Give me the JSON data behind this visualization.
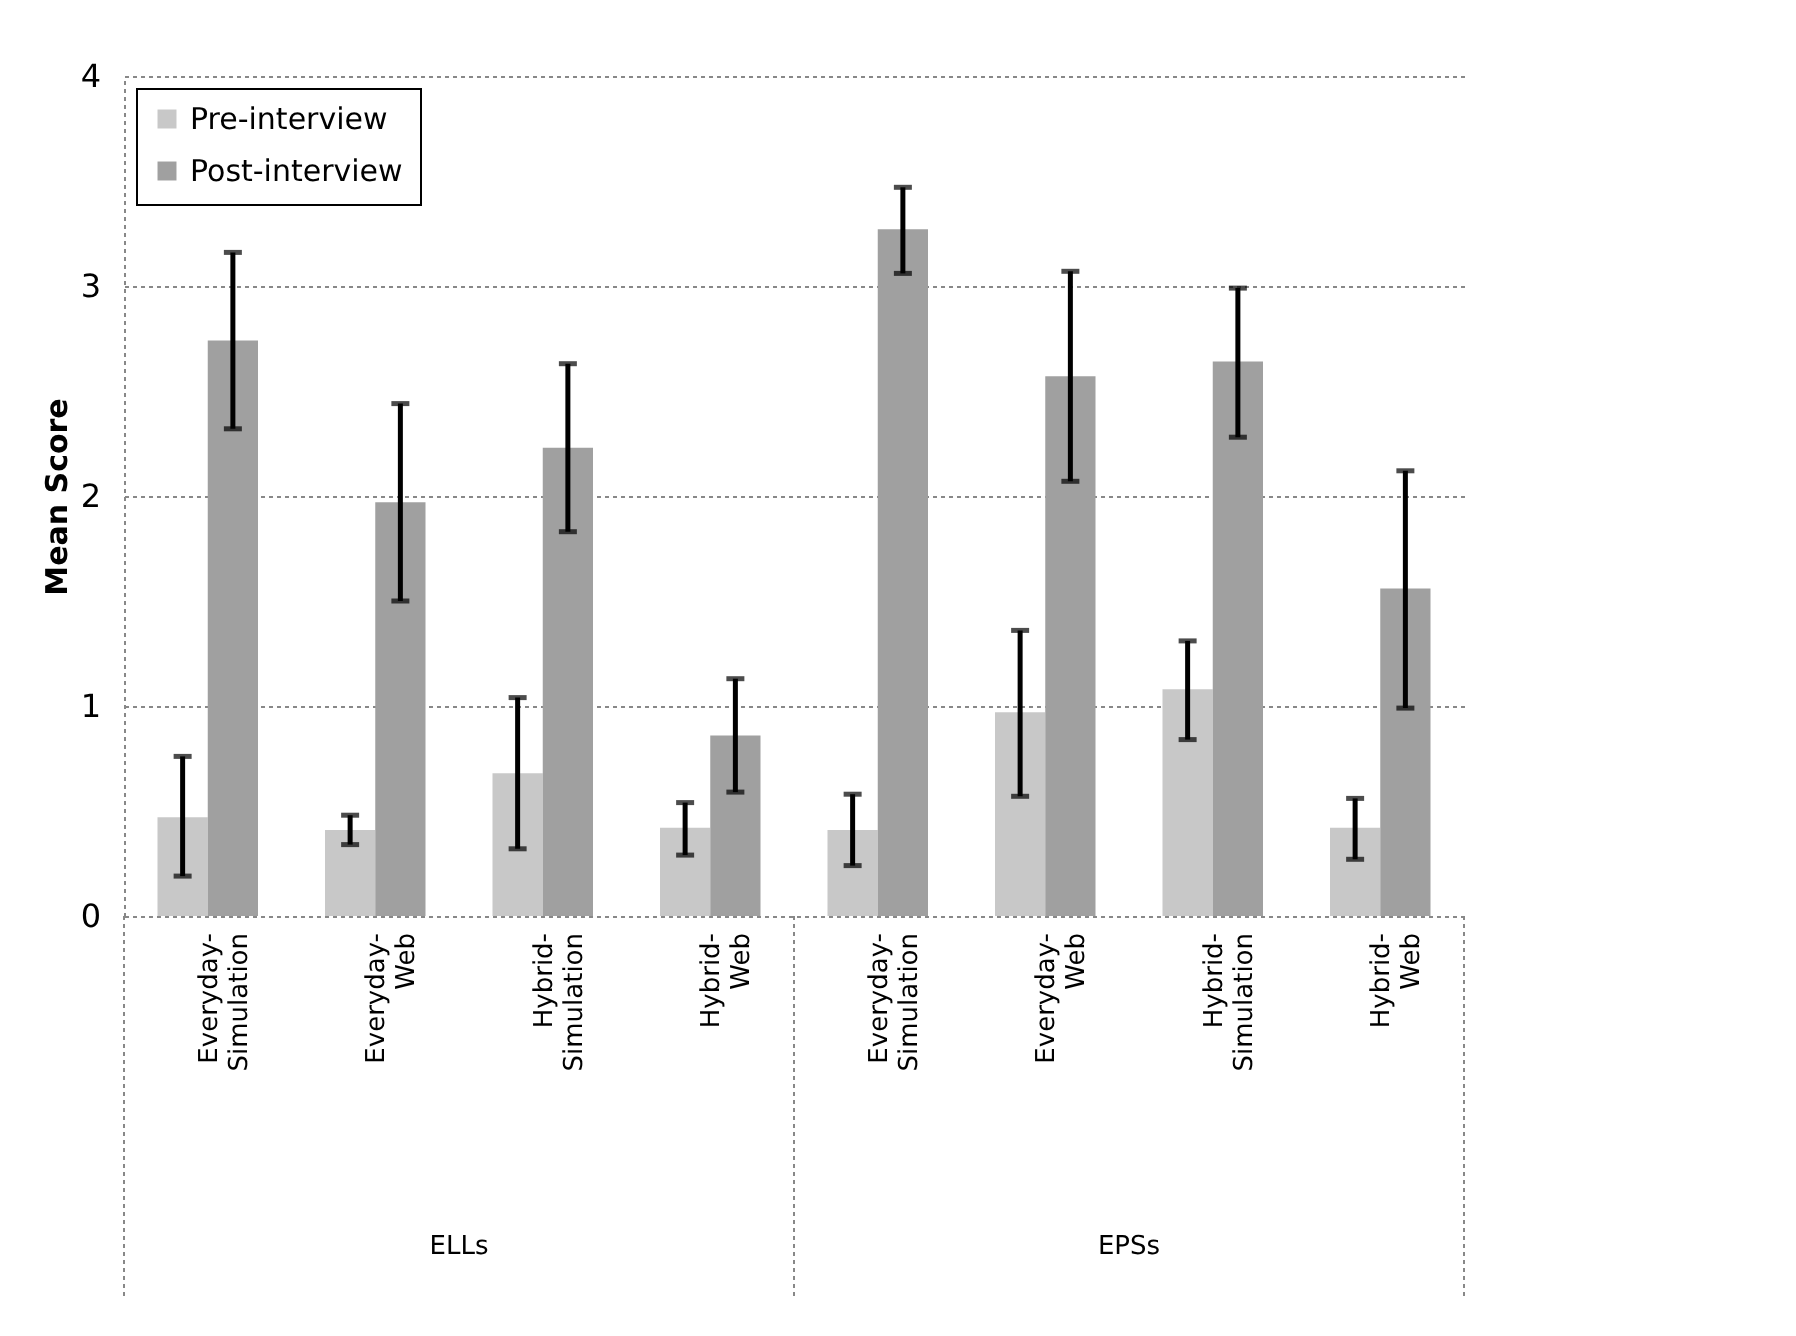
{
  "chart_data": {
    "type": "bar",
    "ylabel": "Mean Score",
    "categories": [
      "Everyday-Simulation",
      "Everyday-Web",
      "Hybrid-Simulation",
      "Hybrid-Web",
      "Everyday-Simulation",
      "Everyday-Web",
      "Hybrid-Simulation",
      "Hybrid-Web"
    ],
    "annotations": [
      "ELLs",
      "EPSs"
    ],
    "series": [
      {
        "name": "Pre-interview",
        "color": "#c8c8c8",
        "values": [
          0.47,
          0.41,
          0.68,
          0.42,
          0.41,
          0.97,
          1.08,
          0.42
        ],
        "errors": [
          [
            0.19,
            0.76
          ],
          [
            0.34,
            0.48
          ],
          [
            0.32,
            1.04
          ],
          [
            0.29,
            0.54
          ],
          [
            0.24,
            0.58
          ],
          [
            0.57,
            1.36
          ],
          [
            0.84,
            1.31
          ],
          [
            0.27,
            0.56
          ]
        ]
      },
      {
        "name": "Post-interview",
        "color": "#a0a0a0",
        "values": [
          2.74,
          1.97,
          2.23,
          0.86,
          3.27,
          2.57,
          2.64,
          1.56
        ],
        "errors": [
          [
            2.32,
            3.16
          ],
          [
            1.5,
            2.44
          ],
          [
            1.83,
            2.63
          ],
          [
            0.59,
            1.13
          ],
          [
            3.06,
            3.47
          ],
          [
            2.07,
            3.07
          ],
          [
            2.28,
            2.99
          ],
          [
            0.99,
            2.12
          ]
        ]
      }
    ],
    "ylim": [
      0,
      4
    ],
    "yticks": [
      0,
      1,
      2,
      3,
      4
    ],
    "grid": "y",
    "legend": "top left"
  }
}
